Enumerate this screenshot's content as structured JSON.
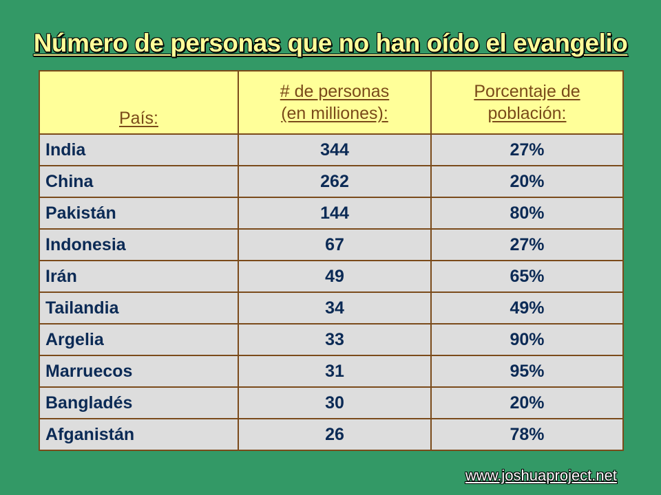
{
  "slide": {
    "title": "Número de personas que no han oído el evangelio",
    "source": "www.joshuaproject.net"
  },
  "table": {
    "headers": {
      "country": "País:",
      "people_line1": "# de personas",
      "people_line2": "(en milliones):",
      "percent_line1": "Porcentaje de",
      "percent_line2": "población:"
    },
    "rows": [
      {
        "country": "India",
        "people": "344",
        "percent": "27%"
      },
      {
        "country": "China",
        "people": "262",
        "percent": "20%"
      },
      {
        "country": "Pakistán",
        "people": "144",
        "percent": "80%"
      },
      {
        "country": "Indonesia",
        "people": "67",
        "percent": "27%"
      },
      {
        "country": "Irán",
        "people": "49",
        "percent": "65%"
      },
      {
        "country": "Tailandia",
        "people": "34",
        "percent": "49%"
      },
      {
        "country": "Argelia",
        "people": "33",
        "percent": "90%"
      },
      {
        "country": "Marruecos",
        "people": "31",
        "percent": "95%"
      },
      {
        "country": "Bangladés",
        "people": "30",
        "percent": "20%"
      },
      {
        "country": "Afganistán",
        "people": "26",
        "percent": "78%"
      }
    ]
  },
  "colors": {
    "background": "#339966",
    "title": "#ffff99",
    "header_fill": "#ffff99",
    "header_text": "#7a4a1a",
    "cell_fill": "#dddddd",
    "cell_text": "#0b2a55",
    "border": "#7a4a1a"
  }
}
